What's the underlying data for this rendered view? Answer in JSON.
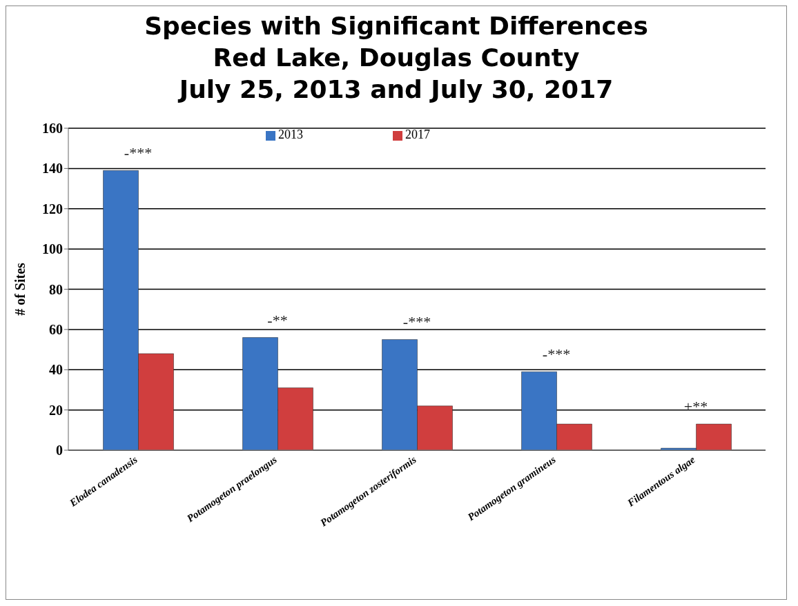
{
  "chart_data": {
    "type": "bar",
    "title": "Species with Significant Differences\nRed Lake, Douglas County\nJuly 25, 2013 and July 30, 2017",
    "ylabel": "# of Sites",
    "categories": [
      "Elodea canadensis",
      "Potamogeton praelongus",
      "Potamogeton zosteriformis",
      "Potamogeton gramineus",
      "Filamentous algae"
    ],
    "series": [
      {
        "name": "2013",
        "color": "#3a75c4",
        "values": [
          139,
          56,
          55,
          39,
          1
        ]
      },
      {
        "name": "2017",
        "color": "#d03e3e",
        "values": [
          48,
          31,
          22,
          13,
          13
        ]
      }
    ],
    "ylim": [
      0,
      160
    ],
    "yticks": [
      0,
      20,
      40,
      60,
      80,
      100,
      120,
      140,
      160
    ],
    "grid": "y",
    "legend": "top",
    "annotations": [
      {
        "text": "-***",
        "x": "Elodea canadensis",
        "y": 139
      },
      {
        "text": "-**",
        "x": "Potamogeton praelongus",
        "y": 56
      },
      {
        "text": "-***",
        "x": "Potamogeton zosteriformis",
        "y": 55
      },
      {
        "text": "-***",
        "x": "Potamogeton gramineus",
        "y": 39
      },
      {
        "text": "+**",
        "x": "Filamentous algae",
        "y": 13
      }
    ]
  }
}
